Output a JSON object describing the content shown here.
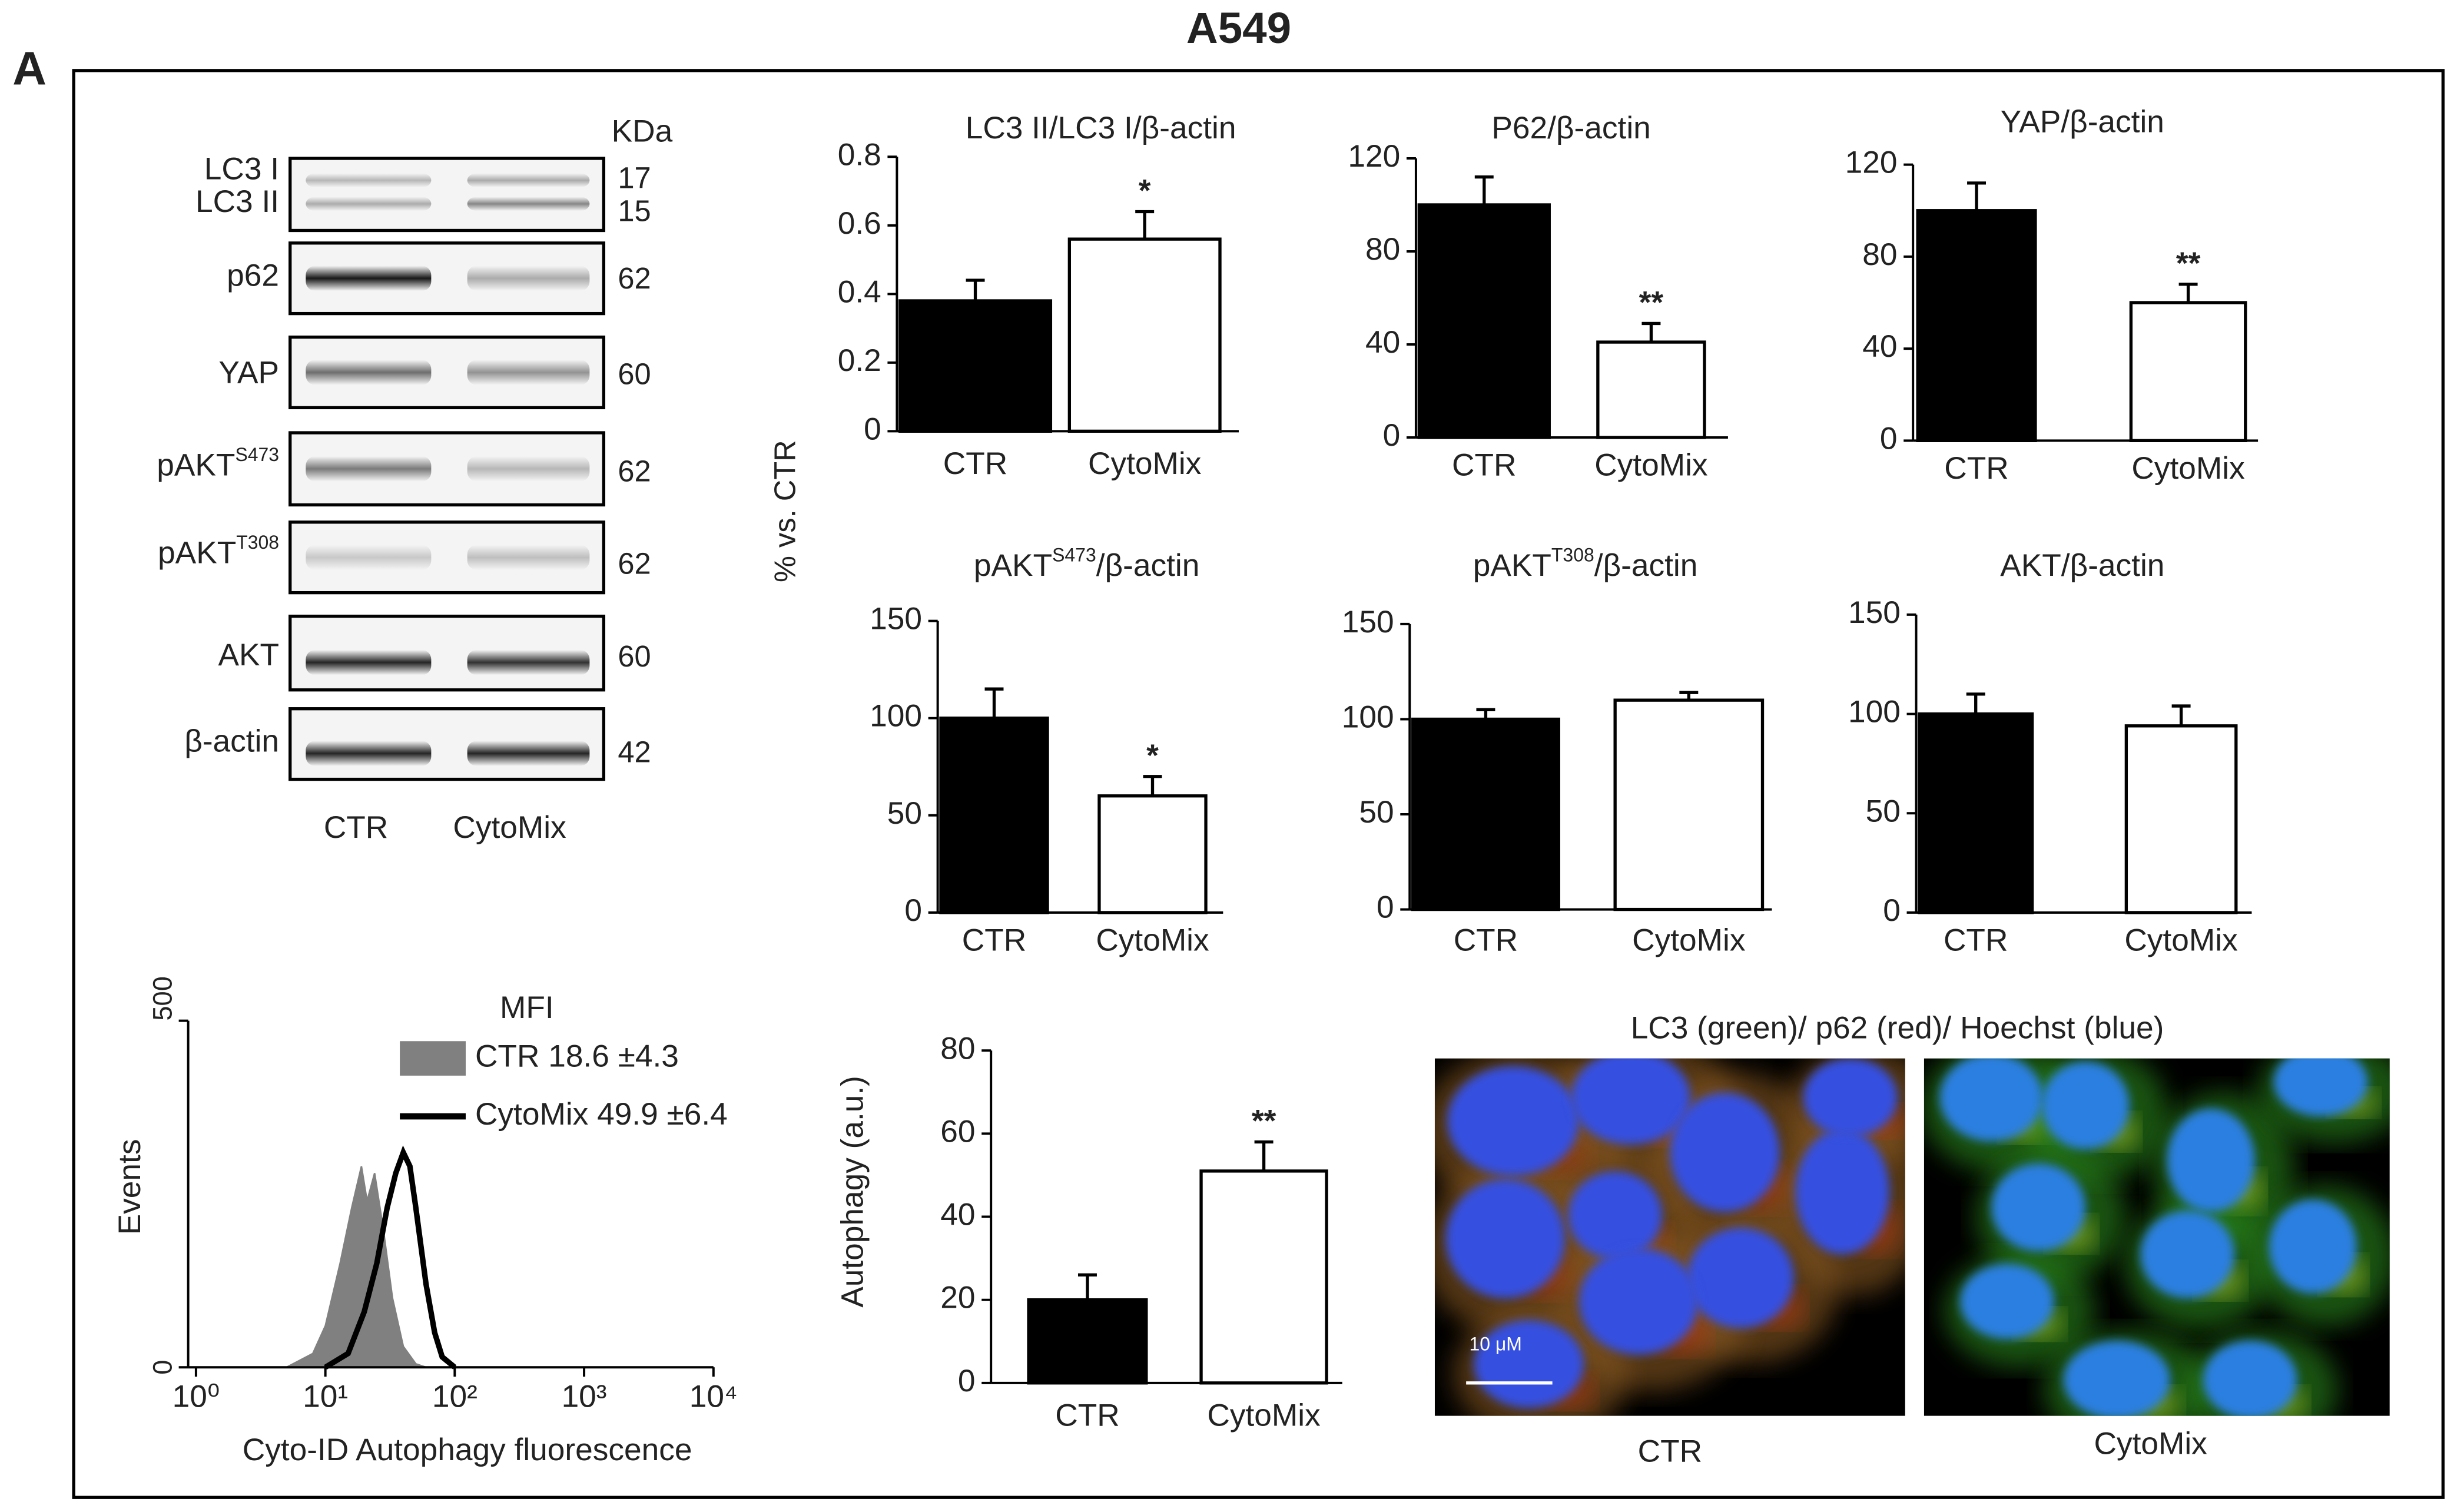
{
  "figure": {
    "panel": "A",
    "title": "A549",
    "shared_ylabel": "% vs. CTR"
  },
  "blot": {
    "unit_header": "KDa",
    "lanes": [
      "CTR",
      "CytoMix"
    ],
    "rows": [
      {
        "label": "LC3 I",
        "kda": "17"
      },
      {
        "label": "LC3 II",
        "kda": "15"
      },
      {
        "label": "p62",
        "kda": "62"
      },
      {
        "label": "YAP",
        "kda": "60"
      },
      {
        "label": "pAKT",
        "sup": "S473",
        "kda": "62"
      },
      {
        "label": "pAKT",
        "sup": "T308",
        "kda": "62"
      },
      {
        "label": "AKT",
        "kda": "60"
      },
      {
        "label": "β-actin",
        "kda": "42"
      }
    ]
  },
  "chart_data": [
    {
      "type": "bar",
      "title": "LC3 II/LC3 I/β-actin",
      "categories": [
        "CTR",
        "CytoMix"
      ],
      "values": [
        0.38,
        0.56
      ],
      "errors": [
        0.06,
        0.08
      ],
      "colors": [
        "#000000",
        "#ffffff"
      ],
      "annotations": [
        null,
        "*"
      ],
      "ylim": [
        0,
        0.8
      ],
      "yticks": [
        0,
        0.2,
        0.4,
        0.6,
        0.8
      ]
    },
    {
      "type": "bar",
      "title": "P62/β-actin",
      "categories": [
        "CTR",
        "CytoMix"
      ],
      "values": [
        100,
        41
      ],
      "errors": [
        12,
        8
      ],
      "colors": [
        "#000000",
        "#ffffff"
      ],
      "annotations": [
        null,
        "**"
      ],
      "ylim": [
        0,
        120
      ],
      "yticks": [
        0,
        40,
        80,
        120
      ]
    },
    {
      "type": "bar",
      "title": "YAP/β-actin",
      "categories": [
        "CTR",
        "CytoMix"
      ],
      "values": [
        100,
        60
      ],
      "errors": [
        12,
        8
      ],
      "colors": [
        "#000000",
        "#ffffff"
      ],
      "annotations": [
        null,
        "**"
      ],
      "ylim": [
        0,
        120
      ],
      "yticks": [
        0,
        40,
        80,
        120
      ]
    },
    {
      "type": "bar",
      "title": "pAKT",
      "title_sup": "S473",
      "title_suffix": "/β-actin",
      "categories": [
        "CTR",
        "CytoMix"
      ],
      "values": [
        100,
        60
      ],
      "errors": [
        15,
        10
      ],
      "colors": [
        "#000000",
        "#ffffff"
      ],
      "annotations": [
        null,
        "*"
      ],
      "ylim": [
        0,
        150
      ],
      "yticks": [
        0,
        50,
        100,
        150
      ]
    },
    {
      "type": "bar",
      "title": "pAKT",
      "title_sup": "T308",
      "title_suffix": "/β-actin",
      "categories": [
        "CTR",
        "CytoMix"
      ],
      "values": [
        100,
        110
      ],
      "errors": [
        5,
        4
      ],
      "colors": [
        "#000000",
        "#ffffff"
      ],
      "ylim": [
        0,
        150
      ],
      "yticks": [
        0,
        50,
        100,
        150
      ]
    },
    {
      "type": "bar",
      "title": "AKT/β-actin",
      "categories": [
        "CTR",
        "CytoMix"
      ],
      "values": [
        100,
        94
      ],
      "errors": [
        10,
        10
      ],
      "colors": [
        "#000000",
        "#ffffff"
      ],
      "ylim": [
        0,
        150
      ],
      "yticks": [
        0,
        50,
        100,
        150
      ]
    },
    {
      "type": "bar",
      "ylabel": "Autophagy (a.u.)",
      "categories": [
        "CTR",
        "CytoMix"
      ],
      "values": [
        20,
        51
      ],
      "errors": [
        6,
        7
      ],
      "colors": [
        "#000000",
        "#ffffff"
      ],
      "annotations": [
        null,
        "**"
      ],
      "ylim": [
        0,
        80
      ],
      "yticks": [
        0,
        20,
        40,
        60,
        80
      ]
    },
    {
      "type": "line",
      "xlabel": "Cyto-ID Autophagy fluorescence",
      "ylabel": "Events",
      "legend_title": "MFI",
      "log_x": true,
      "xlim": [
        1,
        10000
      ],
      "xticks": [
        {
          "value": 1,
          "label": "10⁰"
        },
        {
          "value": 10,
          "label": "10¹"
        },
        {
          "value": 100,
          "label": "10²"
        },
        {
          "value": 1000,
          "label": "10³"
        },
        {
          "value": 10000,
          "label": "10⁴"
        }
      ],
      "ylim": [
        0,
        500
      ],
      "yticks": [
        0,
        500
      ],
      "series": [
        {
          "name": "CTR 18.6 ±4.3",
          "color": "#808080",
          "fill": true,
          "x": [
            5,
            8,
            10,
            13,
            16,
            19,
            21,
            24,
            28,
            33,
            40,
            50,
            60
          ],
          "values": [
            0,
            20,
            60,
            150,
            230,
            290,
            240,
            280,
            200,
            100,
            30,
            5,
            0
          ]
        },
        {
          "name": "CytoMix 49.9 ±6.4",
          "color": "#000000",
          "fill": false,
          "x": [
            10,
            15,
            20,
            25,
            30,
            35,
            40,
            45,
            50,
            60,
            70,
            80,
            100
          ],
          "values": [
            0,
            20,
            80,
            150,
            230,
            280,
            310,
            290,
            230,
            120,
            50,
            15,
            0
          ]
        }
      ]
    }
  ],
  "microscopy": {
    "title": "LC3 (green)/ p62 (red)/ Hoechst (blue)",
    "scale_bar": "10 μM",
    "captions": [
      "CTR",
      "CytoMix"
    ]
  }
}
